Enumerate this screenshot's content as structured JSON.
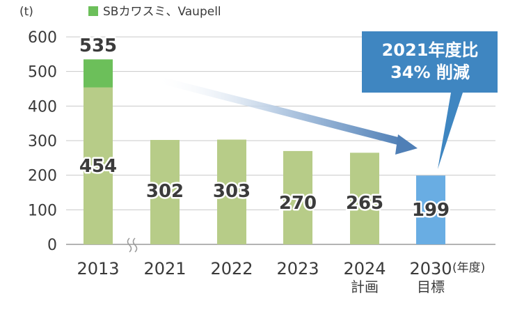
{
  "chart_data": {
    "type": "bar",
    "y_unit": "(t)",
    "x_unit": "(年度)",
    "ylim": [
      0,
      600
    ],
    "yticks": [
      0,
      100,
      200,
      300,
      400,
      500,
      600
    ],
    "grid": true,
    "legend": {
      "label": "SBカワスミ、Vaupell",
      "color": "#6cbf5a",
      "position": "top-left"
    },
    "categories": [
      "2013",
      "2021",
      "2022",
      "2023",
      "2024",
      "2030"
    ],
    "category_sublabels": [
      "",
      "",
      "",
      "",
      "計画",
      "目標"
    ],
    "series": [
      {
        "values": [
          454,
          302,
          303,
          270,
          265,
          199
        ],
        "color": "#b7cc88",
        "target_color": "#69ade3"
      },
      {
        "name": "SBカワスミ、Vaupell",
        "values": [
          81,
          0,
          0,
          0,
          0,
          0
        ],
        "color": "#6cbf5a"
      }
    ],
    "total_labels": [
      "535",
      "",
      "",
      "",
      "",
      ""
    ],
    "value_labels": [
      "454",
      "302",
      "303",
      "270",
      "265",
      "199"
    ],
    "axis_break_after": "2013",
    "callout": {
      "lines": [
        "2021年度比",
        "34% 削減"
      ],
      "color": "#3f86c1"
    }
  }
}
